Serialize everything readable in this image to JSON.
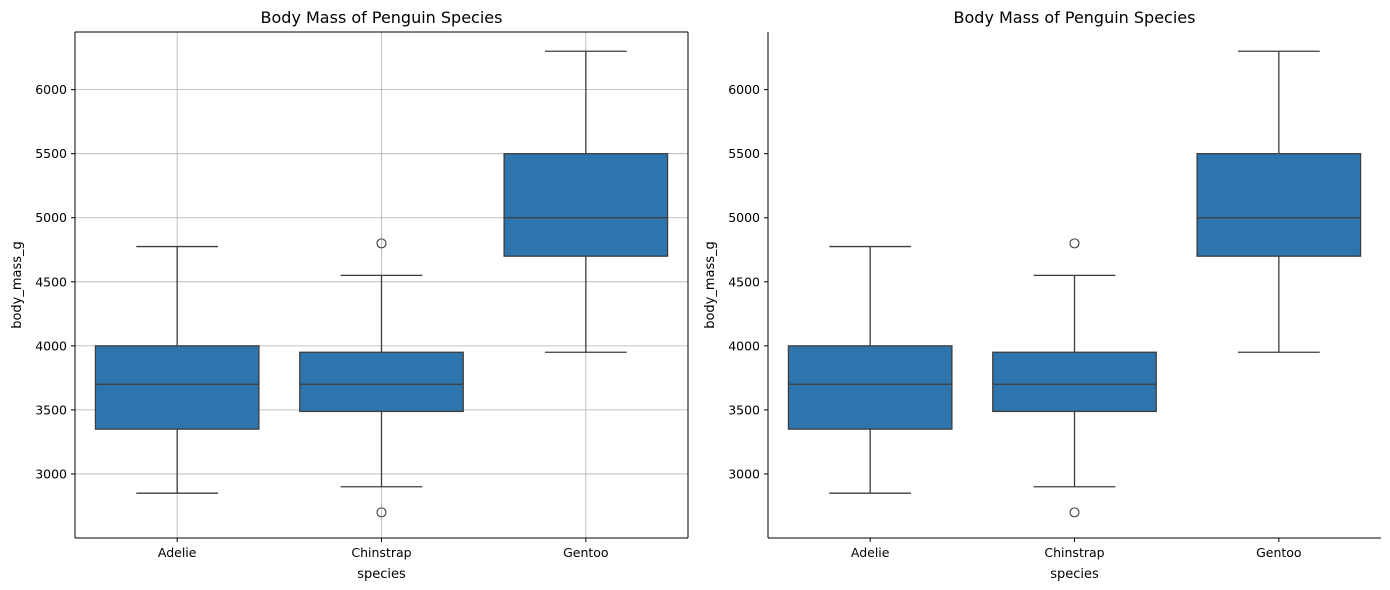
{
  "chart_data": [
    {
      "type": "box",
      "title": "Body Mass of Penguin Species",
      "xlabel": "species",
      "ylabel": "body_mass_g",
      "ylim": [
        2500,
        6450
      ],
      "yticks": [
        3000,
        3500,
        4000,
        4500,
        5000,
        5500,
        6000
      ],
      "grid": true,
      "spines": "all",
      "box_color": "#2e75ad",
      "line_color": "#3d3d3d",
      "categories": [
        "Adelie",
        "Chinstrap",
        "Gentoo"
      ],
      "boxes": [
        {
          "q1": 3350,
          "median": 3700,
          "q3": 4000,
          "whisker_low": 2850,
          "whisker_high": 4775,
          "outliers": []
        },
        {
          "q1": 3488,
          "median": 3700,
          "q3": 3950,
          "whisker_low": 2900,
          "whisker_high": 4550,
          "outliers": [
            2700,
            4800
          ]
        },
        {
          "q1": 4700,
          "median": 5000,
          "q3": 5500,
          "whisker_low": 3950,
          "whisker_high": 6300,
          "outliers": []
        }
      ]
    },
    {
      "type": "box",
      "title": "Body Mass of Penguin Species",
      "xlabel": "species",
      "ylabel": "body_mass_g",
      "ylim": [
        2500,
        6450
      ],
      "yticks": [
        3000,
        3500,
        4000,
        4500,
        5000,
        5500,
        6000
      ],
      "grid": false,
      "spines": "left-bottom",
      "box_color": "#2e75ad",
      "line_color": "#3d3d3d",
      "categories": [
        "Adelie",
        "Chinstrap",
        "Gentoo"
      ],
      "boxes": [
        {
          "q1": 3350,
          "median": 3700,
          "q3": 4000,
          "whisker_low": 2850,
          "whisker_high": 4775,
          "outliers": []
        },
        {
          "q1": 3488,
          "median": 3700,
          "q3": 3950,
          "whisker_low": 2900,
          "whisker_high": 4550,
          "outliers": [
            2700,
            4800
          ]
        },
        {
          "q1": 4700,
          "median": 5000,
          "q3": 5500,
          "whisker_low": 3950,
          "whisker_high": 6300,
          "outliers": []
        }
      ]
    }
  ]
}
